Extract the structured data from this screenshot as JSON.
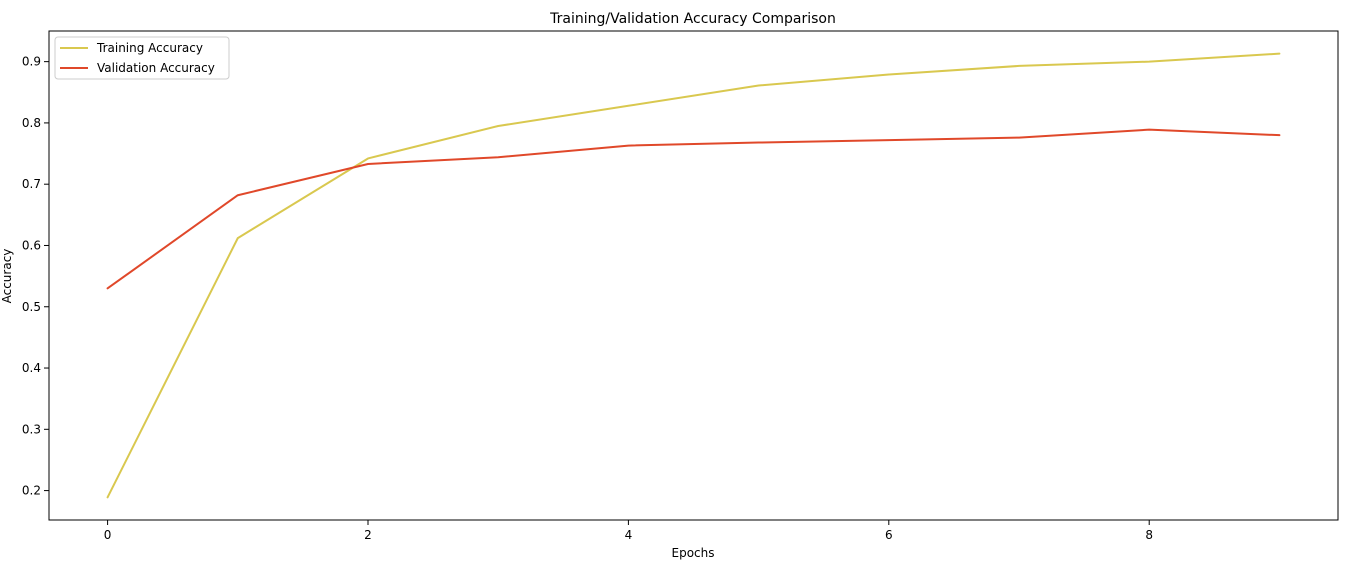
{
  "chart_data": {
    "type": "line",
    "title": "Training/Validation Accuracy Comparison",
    "xlabel": "Epochs",
    "ylabel": "Accuracy",
    "x": [
      0,
      1,
      2,
      3,
      4,
      5,
      6,
      7,
      8,
      9
    ],
    "xlim": [
      -0.45,
      9.45
    ],
    "ylim": [
      0.152,
      0.95
    ],
    "xticks": [
      0,
      2,
      4,
      6,
      8
    ],
    "yticks": [
      0.2,
      0.3,
      0.4,
      0.5,
      0.6,
      0.7,
      0.8,
      0.9
    ],
    "xtick_labels": [
      "0",
      "2",
      "4",
      "6",
      "8"
    ],
    "ytick_labels": [
      "0.2",
      "0.3",
      "0.4",
      "0.5",
      "0.6",
      "0.7",
      "0.8",
      "0.9"
    ],
    "grid": false,
    "legend_position": "top-left",
    "series": [
      {
        "name": "Training Accuracy",
        "color": "#d9c84f",
        "values": [
          0.189,
          0.612,
          0.742,
          0.795,
          0.828,
          0.861,
          0.879,
          0.893,
          0.9,
          0.913
        ]
      },
      {
        "name": "Validation Accuracy",
        "color": "#e0482a",
        "values": [
          0.53,
          0.682,
          0.733,
          0.744,
          0.763,
          0.768,
          0.772,
          0.776,
          0.789,
          0.78
        ]
      }
    ]
  }
}
